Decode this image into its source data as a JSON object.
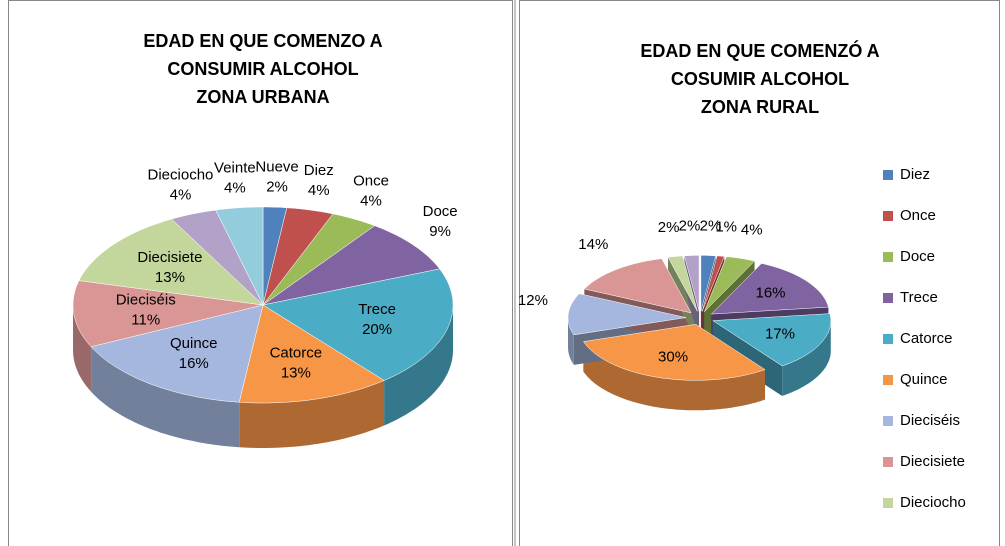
{
  "chart_data": [
    {
      "type": "pie3d",
      "title": [
        "EDAD EN QUE COMENZO A",
        "CONSUMIR ALCOHOL",
        "ZONA URBANA"
      ],
      "categories": [
        "Nueve",
        "Diez",
        "Once",
        "Doce",
        "Trece",
        "Catorce",
        "Quince",
        "Dieciséis",
        "Diecisiete",
        "Dieciocho",
        "Veinte"
      ],
      "values": [
        2,
        4,
        4,
        9,
        20,
        13,
        16,
        11,
        13,
        4,
        4
      ],
      "value_labels": [
        "2%",
        "4%",
        "4%",
        "9%",
        "20%",
        "13%",
        "16%",
        "11%",
        "13%",
        "4%",
        "4%"
      ],
      "colors": [
        "#4f81bd",
        "#c0504d",
        "#9bbb59",
        "#8064a2",
        "#4bacc6",
        "#f79646",
        "#a5b7de",
        "#d99694",
        "#c3d69b",
        "#b3a2c7",
        "#93cddd"
      ],
      "legend": false,
      "exploded": false
    },
    {
      "type": "pie3d",
      "title": [
        "EDAD EN QUE COMENZÓ A",
        "COSUMIR ALCOHOL",
        "ZONA RURAL"
      ],
      "categories": [
        "Diez",
        "Once",
        "Doce",
        "Trece",
        "Catorce",
        "Quince",
        "Dieciséis",
        "Diecisiete",
        "Dieciocho",
        null
      ],
      "values": [
        2,
        1,
        4,
        16,
        17,
        30,
        12,
        14,
        2,
        2
      ],
      "value_labels": [
        "2%",
        "1%",
        "4%",
        "16%",
        "17%",
        "30%",
        "12%",
        "14%",
        "2%",
        "2%"
      ],
      "colors": [
        "#4f81bd",
        "#c0504d",
        "#9bbb59",
        "#8064a2",
        "#4bacc6",
        "#f79646",
        "#a5b7de",
        "#d99694",
        "#c3d69b",
        "#b3a2c7"
      ],
      "legend": "right",
      "exploded": true
    }
  ]
}
